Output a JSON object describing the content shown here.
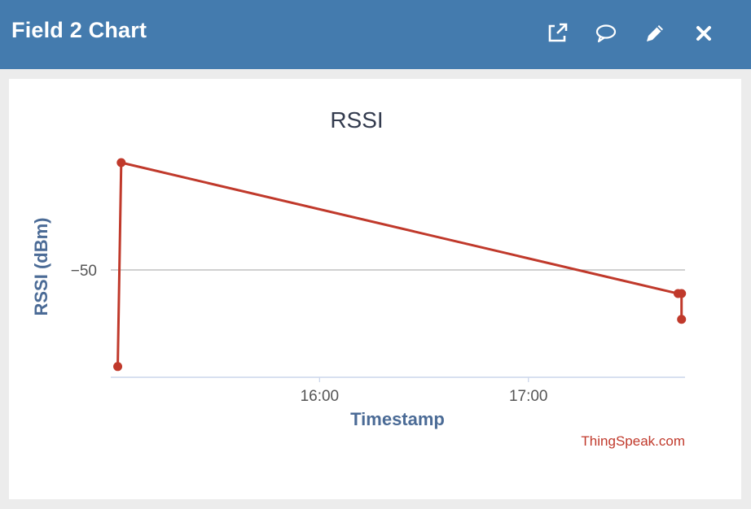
{
  "window": {
    "title": "Field 2 Chart",
    "actions": [
      {
        "name": "popout-icon",
        "label": ""
      },
      {
        "name": "comment-icon",
        "label": ""
      },
      {
        "name": "edit-icon",
        "label": ""
      },
      {
        "name": "close-icon",
        "label": ""
      }
    ]
  },
  "colors": {
    "header": "#447bae",
    "series": "#c0392b",
    "axis_title": "#4b6b96"
  },
  "chart_data": {
    "type": "line",
    "title": "RSSI",
    "xlabel": "Timestamp",
    "ylabel": "RSSI (dBm)",
    "x_ticks": [
      "16:00",
      "17:00"
    ],
    "y_ticks": [
      "−50"
    ],
    "xlim": [
      "15:00",
      "17:45"
    ],
    "ylim": [
      -55,
      -45
    ],
    "grid": true,
    "credit": "ThingSpeak.com",
    "series": [
      {
        "points": [
          {
            "x": "15:02",
            "y": -54.5
          },
          {
            "x": "15:03",
            "y": -45
          },
          {
            "x": "17:43",
            "y": -51.1
          },
          {
            "x": "17:44",
            "y": -51.1
          },
          {
            "x": "17:44",
            "y": -52.3
          }
        ]
      }
    ]
  }
}
